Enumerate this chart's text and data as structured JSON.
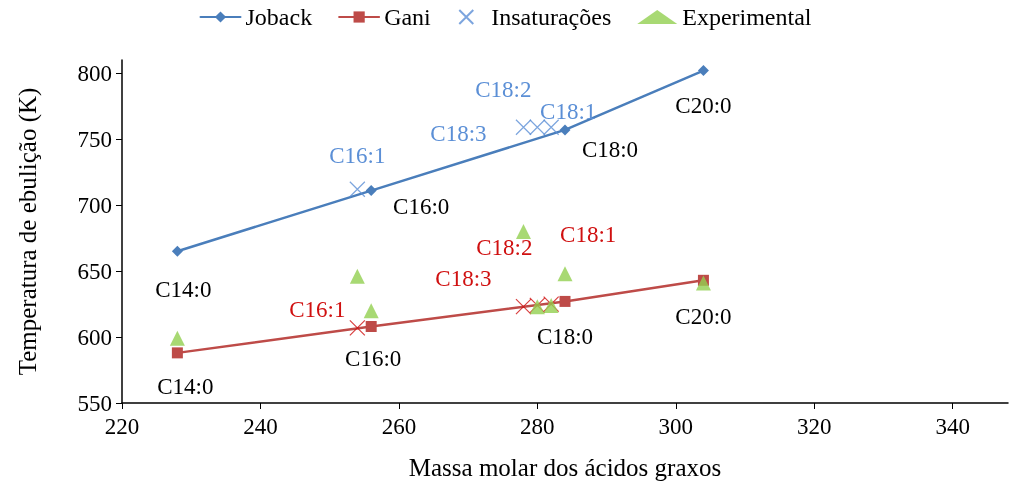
{
  "chart_data": {
    "type": "line",
    "xlabel": "Massa molar dos ácidos graxos",
    "ylabel": "Temperatura de ebulição (K)",
    "xlim": [
      220,
      348
    ],
    "xticks": [
      220,
      240,
      260,
      280,
      300,
      320,
      340
    ],
    "ylim": [
      550,
      810
    ],
    "yticks": [
      550,
      600,
      650,
      700,
      750,
      800
    ],
    "grid": false,
    "legend": "top",
    "series": [
      {
        "name": "Joback",
        "marker": "diamond",
        "color": "#4a7ebb",
        "x": [
          228,
          256,
          284,
          304
        ],
        "values": [
          665,
          711,
          757,
          802
        ]
      },
      {
        "name": "Gani",
        "marker": "square",
        "color": "#be4b48",
        "x": [
          228,
          256,
          284,
          304
        ],
        "values": [
          588,
          608,
          627,
          643
        ]
      },
      {
        "name": "Insaturações",
        "type": "scatter",
        "marker": "cross",
        "color": "#5b8fd6",
        "x": [
          254,
          278,
          280,
          282
        ],
        "values": [
          712,
          759,
          759,
          759
        ]
      },
      {
        "type": "scatter",
        "marker": "cross",
        "color": "#d01010",
        "x": [
          254,
          278,
          280,
          282
        ],
        "values": [
          607,
          623,
          624,
          625
        ]
      },
      {
        "name": "Experimental",
        "type": "scatter",
        "marker": "triangle",
        "color": "#92d050",
        "x": [
          228,
          254,
          256,
          278,
          280,
          282,
          284,
          304
        ],
        "values": [
          599,
          646,
          620,
          680,
          623,
          624,
          648,
          641
        ]
      }
    ],
    "annotations": [
      {
        "text": "C14:0",
        "x": 228,
        "y": 665
      },
      {
        "text": "C16:0",
        "x": 256,
        "y": 711
      },
      {
        "text": "C18:0",
        "x": 284,
        "y": 757
      },
      {
        "text": "C20:0",
        "x": 304,
        "y": 802
      },
      {
        "text": "C16:1",
        "x": 254,
        "y": 712
      },
      {
        "text": "C18:3",
        "x": 278,
        "y": 759
      },
      {
        "text": "C18:2",
        "x": 280,
        "y": 759
      },
      {
        "text": "C18:1",
        "x": 282,
        "y": 759
      },
      {
        "text": "C14:0",
        "x": 228,
        "y": 588
      },
      {
        "text": "C16:0",
        "x": 256,
        "y": 608
      },
      {
        "text": "C18:0",
        "x": 284,
        "y": 627
      },
      {
        "text": "C20:0",
        "x": 304,
        "y": 643
      },
      {
        "text": "C16:1",
        "x": 254,
        "y": 607
      },
      {
        "text": "C18:3",
        "x": 278,
        "y": 623
      },
      {
        "text": "C18:2",
        "x": 280,
        "y": 624
      },
      {
        "text": "C18:1",
        "x": 282,
        "y": 625
      }
    ]
  }
}
